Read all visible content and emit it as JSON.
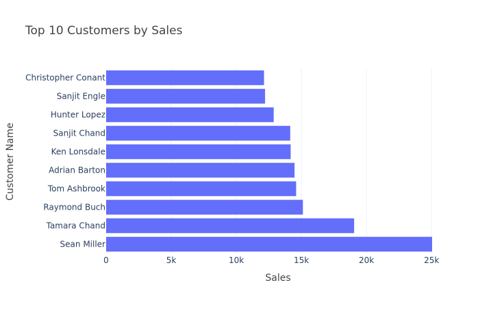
{
  "chart_data": {
    "type": "bar",
    "orientation": "horizontal",
    "title": "Top 10 Customers by Sales",
    "xlabel": "Sales",
    "ylabel": "Customer Name",
    "categories": [
      "Sean Miller",
      "Tamara Chand",
      "Raymond Buch",
      "Tom Ashbrook",
      "Adrian Barton",
      "Ken Lonsdale",
      "Sanjit Chand",
      "Hunter Lopez",
      "Sanjit Engle",
      "Christopher Conant"
    ],
    "values": [
      25043,
      19052,
      15117,
      14596,
      14474,
      14175,
      14142,
      12873,
      12209,
      12129
    ],
    "xlim": [
      0,
      25043
    ],
    "xticks": [
      0,
      5000,
      10000,
      15000,
      20000,
      25000
    ],
    "xtick_labels": [
      "0",
      "5k",
      "10k",
      "15k",
      "20k",
      "25k"
    ],
    "grid": true,
    "bar_color": "#636efa",
    "grid_color": "#ebf0f8",
    "text_color": "#2a3f5f",
    "title_color": "#444444"
  }
}
